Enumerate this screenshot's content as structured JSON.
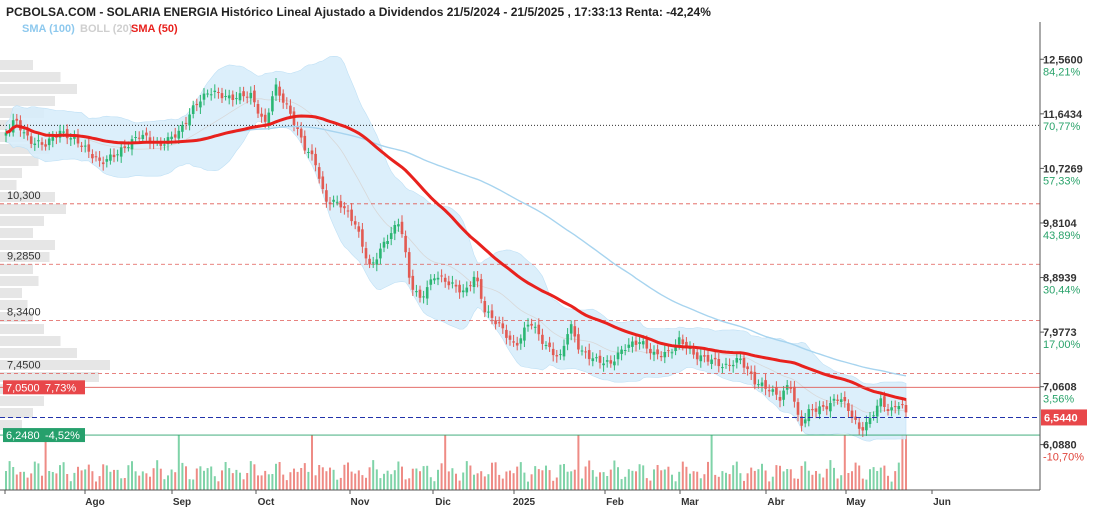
{
  "header": {
    "title": "PCBOLSA.COM - SOLARIA ENERGIA Histórico Lineal Ajustado a Dividendos 21/5/2024 - 21/5/2025 , 17:33:13 Renta: -42,24%"
  },
  "legend": [
    {
      "label": "SMA (100)",
      "color": "#8ec9ee"
    },
    {
      "label": "BOLL (20)",
      "color": "#cfcfcf"
    },
    {
      "label": "SMA (50)",
      "color": "#e8211d"
    }
  ],
  "colors": {
    "up": "#2bb673",
    "down": "#e25a52",
    "sma50": "#e8211d",
    "sma100": "#a7d4ef",
    "boll": "#d6ecfa"
  },
  "chart_data": {
    "type": "candlestick",
    "title": "PCBOLSA.COM - SOLARIA ENERGIA Histórico Lineal Ajustado a Dividendos 21/5/2024 - 21/5/2025 , 17:33:13 Renta: -42,24%",
    "y_ticks": [
      {
        "value": "12,5600",
        "pct": "84,21%"
      },
      {
        "value": "11,6434",
        "pct": "70,77%"
      },
      {
        "value": "10,7269",
        "pct": "57,33%"
      },
      {
        "value": "9,8104",
        "pct": "43,89%"
      },
      {
        "value": "8,8939",
        "pct": "30,44%"
      },
      {
        "value": "7,9773",
        "pct": "17,00%"
      },
      {
        "value": "7,0608",
        "pct": "3,56%"
      },
      {
        "value": "6,0880",
        "pct": "-10,70%"
      }
    ],
    "ylim": [
      5.93,
      12.85
    ],
    "x_ticks": [
      "Ago",
      "Sep",
      "Oct",
      "Nov",
      "Dic",
      "2025",
      "Feb",
      "Mar",
      "Abr",
      "May",
      "Jun"
    ],
    "resistance_levels": [
      "10,300",
      "9,2850",
      "8,3400",
      "7,4500"
    ],
    "reference_line": 11.45,
    "current_price": "6,5440",
    "high_marker": {
      "value": "7,0500",
      "pct": "7,73%"
    },
    "low_marker": {
      "value": "6,2480",
      "pct": "-4,52%"
    },
    "anchors": [
      [
        0,
        11.27
      ],
      [
        15,
        11.58
      ],
      [
        30,
        11.15
      ],
      [
        45,
        11.05
      ],
      [
        60,
        11.25
      ],
      [
        80,
        11.1
      ],
      [
        100,
        10.85
      ],
      [
        120,
        11.1
      ],
      [
        140,
        11.38
      ],
      [
        160,
        11.12
      ],
      [
        180,
        11.28
      ],
      [
        195,
        11.7
      ],
      [
        210,
        11.95
      ],
      [
        230,
        11.9
      ],
      [
        250,
        12.05
      ],
      [
        265,
        11.55
      ],
      [
        275,
        12.2
      ],
      [
        290,
        11.7
      ],
      [
        305,
        11.05
      ],
      [
        315,
        10.8
      ],
      [
        325,
        10.1
      ],
      [
        340,
        10.05
      ],
      [
        355,
        9.75
      ],
      [
        370,
        9.05
      ],
      [
        385,
        9.55
      ],
      [
        400,
        9.95
      ],
      [
        410,
        8.9
      ],
      [
        420,
        8.6
      ],
      [
        435,
        8.95
      ],
      [
        450,
        8.75
      ],
      [
        465,
        8.55
      ],
      [
        475,
        8.85
      ],
      [
        485,
        8.25
      ],
      [
        500,
        8.05
      ],
      [
        515,
        7.75
      ],
      [
        530,
        8.25
      ],
      [
        545,
        7.85
      ],
      [
        560,
        7.6
      ],
      [
        570,
        8.15
      ],
      [
        580,
        7.65
      ],
      [
        595,
        7.45
      ],
      [
        610,
        7.35
      ],
      [
        625,
        7.65
      ],
      [
        640,
        7.8
      ],
      [
        655,
        7.62
      ],
      [
        670,
        7.72
      ],
      [
        680,
        7.95
      ],
      [
        695,
        7.65
      ],
      [
        710,
        7.55
      ],
      [
        725,
        7.35
      ],
      [
        740,
        7.45
      ],
      [
        755,
        7.05
      ],
      [
        770,
        6.95
      ],
      [
        780,
        6.85
      ],
      [
        790,
        7.15
      ],
      [
        800,
        6.45
      ],
      [
        810,
        6.75
      ],
      [
        825,
        6.8
      ],
      [
        840,
        6.95
      ],
      [
        850,
        6.65
      ],
      [
        860,
        6.3
      ],
      [
        870,
        6.45
      ],
      [
        880,
        6.75
      ],
      [
        890,
        6.55
      ],
      [
        900,
        6.72
      ],
      [
        906,
        6.54
      ]
    ]
  }
}
